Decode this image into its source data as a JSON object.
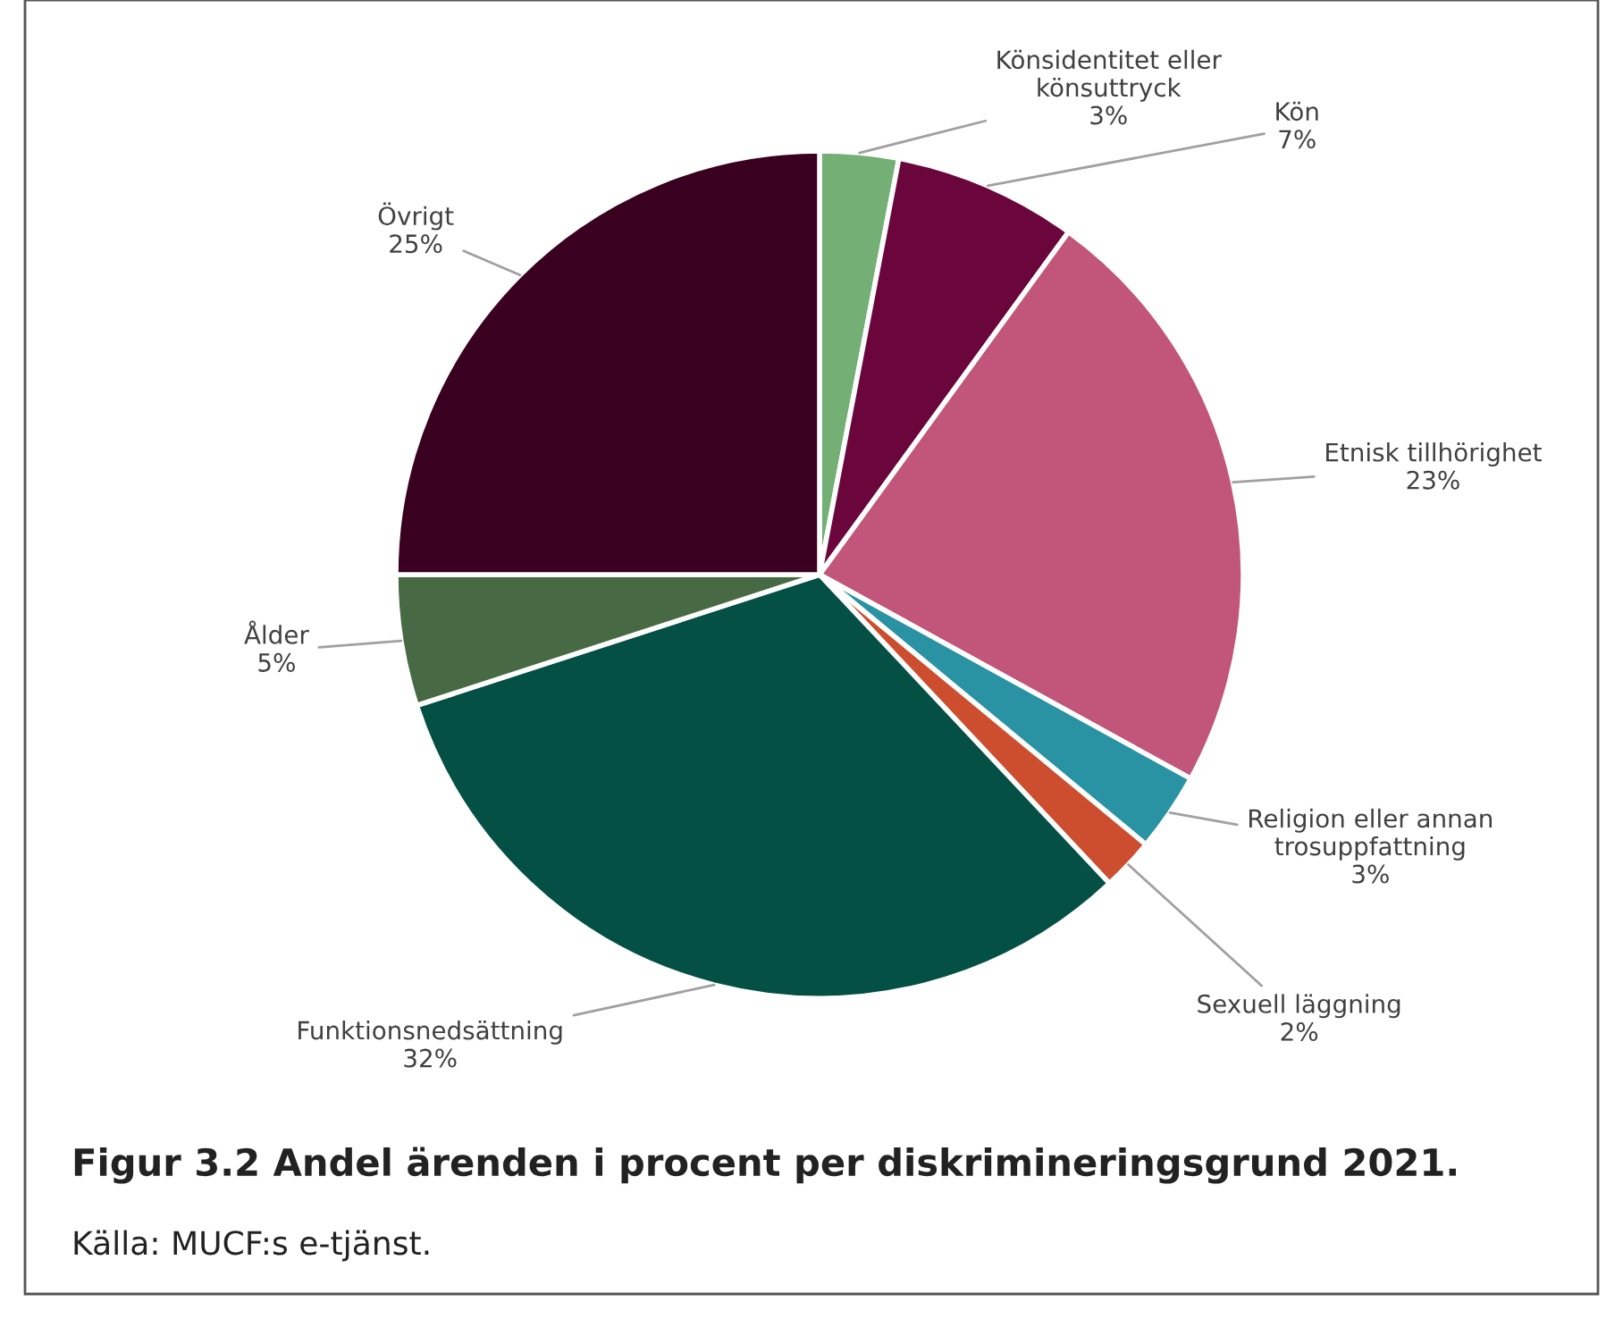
{
  "chart_data": {
    "type": "pie",
    "title": "Figur 3.2 Andel ärenden i procent per diskrimineringsgrund 2021.",
    "annotations": [
      "Källa: MUCF:s e-tjänst."
    ],
    "categories": [
      "Könsidentitet eller\nkönsuttryck",
      "Kön",
      "Etnisk tillhörighet",
      "Religion eller annan\ntrosuppfattning",
      "Sexuell läggning",
      "Funktionsnedsättning",
      "Ålder",
      "Övrigt"
    ],
    "values": [
      3,
      7,
      23,
      3,
      2,
      32,
      5,
      25
    ],
    "value_labels": [
      "3%",
      "7%",
      "23%",
      "3%",
      "2%",
      "32%",
      "5%",
      "25%"
    ],
    "colors": [
      "#74b076",
      "#6b063d",
      "#c2557a",
      "#2a93a3",
      "#cc4e2e",
      "#055045",
      "#476a44",
      "#3a0020"
    ],
    "legend": false
  }
}
